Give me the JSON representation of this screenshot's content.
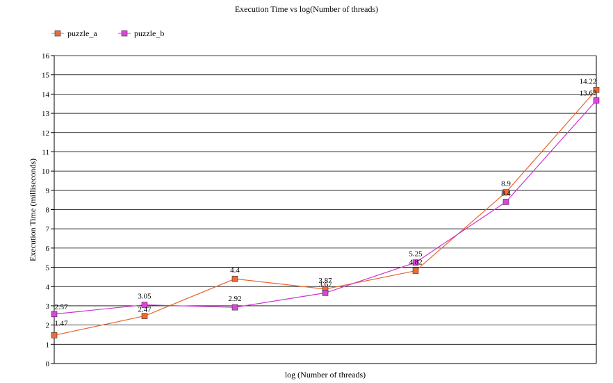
{
  "chart_data": {
    "type": "line",
    "title": "Execution Time vs log(Number of threads)",
    "xlabel": "log (Number of threads)",
    "ylabel": "Execution Time (milliseconds)",
    "ylim": [
      0,
      16
    ],
    "ytick_step": 1,
    "y_ticks": [
      "0",
      "1",
      "2",
      "3",
      "4",
      "5",
      "6",
      "7",
      "8",
      "9",
      "10",
      "11",
      "12",
      "13",
      "14",
      "15",
      "16"
    ],
    "grid": true,
    "legend_position": "top-left",
    "series": [
      {
        "name": "puzzle_a",
        "color": "#e8662f",
        "marker_color": "#f06a32",
        "values": [
          1.47,
          2.47,
          4.4,
          3.87,
          4.82,
          8.9,
          14.22
        ],
        "labels": [
          "1.47",
          "2.47",
          "4.4",
          "3.87",
          "4.82",
          "8.9",
          "14.22"
        ]
      },
      {
        "name": "puzzle_b",
        "color": "#cc33cc",
        "marker_color": "#dd44dd",
        "values": [
          2.57,
          3.05,
          2.92,
          3.67,
          5.25,
          8.4,
          13.67
        ],
        "labels": [
          "2.57",
          "3.05",
          "2.92",
          "3.67",
          "5.25",
          "8.4",
          "13.67"
        ]
      }
    ]
  }
}
